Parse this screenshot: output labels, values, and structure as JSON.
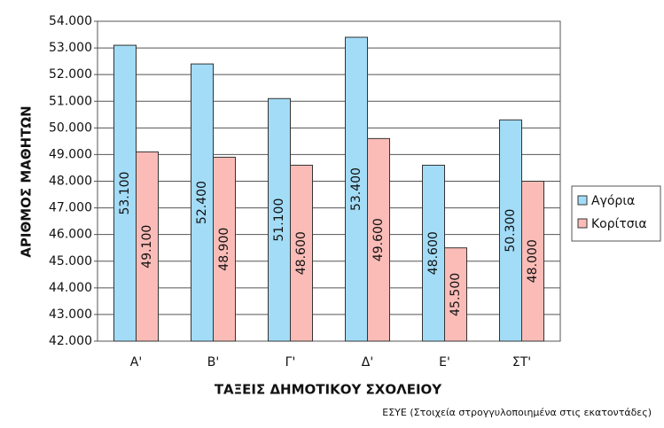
{
  "chart_data": {
    "type": "bar",
    "categories": [
      "Α'",
      "Β'",
      "Γ'",
      "Δ'",
      "Ε'",
      "ΣΤ'"
    ],
    "series": [
      {
        "name": "Αγόρια",
        "color": "#a3dcf7",
        "values": [
          53100,
          52400,
          51100,
          53400,
          48600,
          50300
        ],
        "value_labels": [
          "53.100",
          "52.400",
          "51.100",
          "53.400",
          "48.600",
          "50.300"
        ]
      },
      {
        "name": "Κορίτσια",
        "color": "#fbbcb8",
        "values": [
          49100,
          48900,
          48600,
          49600,
          45500,
          48000
        ],
        "value_labels": [
          "49.100",
          "48.900",
          "48.600",
          "49.600",
          "45.500",
          "48.000"
        ]
      }
    ],
    "ylim": [
      42000,
      54000
    ],
    "yticks": [
      {
        "value": 42000,
        "label": "42.000"
      },
      {
        "value": 43000,
        "label": "43.000"
      },
      {
        "value": 44000,
        "label": "44.000"
      },
      {
        "value": 45000,
        "label": "45.000"
      },
      {
        "value": 46000,
        "label": "46.000"
      },
      {
        "value": 47000,
        "label": "47.000"
      },
      {
        "value": 48000,
        "label": "48.000"
      },
      {
        "value": 49000,
        "label": "49.000"
      },
      {
        "value": 50000,
        "label": "50.000"
      },
      {
        "value": 51000,
        "label": "51.000"
      },
      {
        "value": 52000,
        "label": "52.000"
      },
      {
        "value": 53000,
        "label": "53.000"
      },
      {
        "value": 54000,
        "label": "54.000"
      }
    ],
    "y_label": "ΑΡΙΘΜΟΣ ΜΑΘΗΤΩΝ",
    "x_label": "ΤΑΞΕΙΣ ΔΗΜΟΤΙΚΟΥ ΣΧΟΛΕΙΟΥ",
    "source": "ΕΣΥΕ (Στοιχεία στρογγυλοποιημένα στις εκατοντάδες)",
    "grid": true,
    "legend": "right"
  }
}
